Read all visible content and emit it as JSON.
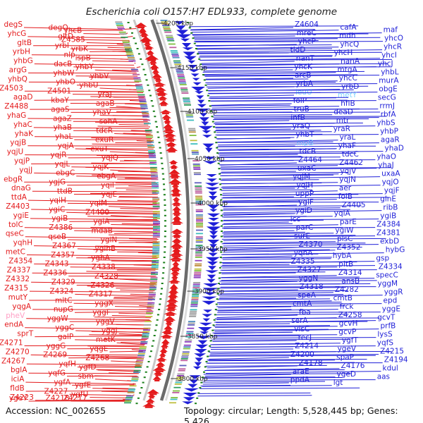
{
  "header": {
    "title": "Escherichia coli O157:H7 EDL933, complete genome"
  },
  "footer": {
    "accession": "Accession: NC_002655",
    "summary": "Topology: circular; Length: 5,528,445 bp; Genes: 5,426"
  },
  "ruler": {
    "ticks": [
      "4200 kbp",
      "4150 kbp",
      "4100 kbp",
      "4050 kbp",
      "4000 kbp",
      "3950 kbp",
      "3900 kbp",
      "3850 kbp",
      "3800 kbp"
    ]
  },
  "colors": {
    "left_strand": "#e41a1c",
    "right_strand": "#1f1fd8",
    "pseudo": "#ff9ec4",
    "rna": "#7fd4ff",
    "tick": "#1a7f1a"
  },
  "left_labels": [
    "degS",
    "degQ",
    "yhcB",
    "yhcG",
    "gltD",
    "Z4585",
    "gltB",
    "yrbI",
    "yrbK",
    "yrbH",
    "nlp",
    "ispB",
    "yhbG",
    "dacB",
    "yhbY",
    "argG",
    "yhbW",
    "yhbV",
    "yhbQ",
    "yhbO",
    "yhbU",
    "Z4503",
    "Z4501",
    "yraJ",
    "agaD",
    "kbaY",
    "agaB",
    "Z4488",
    "agaS",
    "yhaV",
    "yhaG",
    "agaZ",
    "sohA",
    "yhaC",
    "yhaB",
    "tdcR",
    "yhaK",
    "yhaL",
    "exuR",
    "yqjB",
    "yqjA",
    "exuT",
    "yqjU",
    "yqjR",
    "yqjQ",
    "yqjP",
    "yqjL",
    "yqjK",
    "yqjJ",
    "ebgC",
    "ebgA",
    "ebgR",
    "ygjG",
    "yqiI",
    "dnaG",
    "ttdB",
    "yqjE",
    "ttdA",
    "yqiH",
    "yqiM",
    "Z4403",
    "ygiC",
    "Z4400",
    "ygiE",
    "ygiB",
    "ygiA",
    "tolC",
    "Z4386",
    "mdaB",
    "qseC",
    "qseB",
    "ygiN",
    "yqhH",
    "Z4367",
    "ygihB",
    "metC",
    "Z4357",
    "yghA",
    "Z4354",
    "Z4343",
    "Z4338",
    "Z4337",
    "Z4336",
    "Z4328",
    "Z4332",
    "Z4329",
    "Z4326",
    "Z4315",
    "Z4324",
    "Z4317",
    "mutY",
    "mltC",
    "yggX",
    "yqgA",
    "nupG",
    "yggF",
    "pheV",
    "yggW",
    "yggV",
    "endA",
    "yggC",
    "yggJ",
    "sprT",
    "galP",
    "metK",
    "Z4271",
    "yggG",
    "yqgE",
    "Z4270",
    "Z4269",
    "Z4268",
    "Z4267",
    "yqfH",
    "ygfD",
    "bglA",
    "yqfG",
    "sbm",
    "iciA",
    "ygfA",
    "ygfE",
    "fldB",
    "Z4227",
    "ygfU",
    "Z4223",
    "Z4218",
    "Z4217",
    "ygeY"
  ],
  "right_labels": [
    "Z4604",
    "cafA",
    "maf",
    "mreC",
    "mdh",
    "yhcO",
    "yhcP",
    "yhcQ",
    "yhcR",
    "tldD",
    "yhcH",
    "yhcI",
    "nanT",
    "nanA",
    "yhcJ",
    "yhcK",
    "mtgA",
    "yhbL",
    "arcB",
    "yhcC",
    "murA",
    "yrbA",
    "yrbD",
    "obgE",
    "leuU",
    "metY",
    "secG",
    "folP",
    "hflB",
    "rrmJ",
    "truB",
    "deaD",
    "rbfA",
    "infB",
    "mtr",
    "yhbS",
    "yraQ",
    "yraR",
    "yhbP",
    "yhbT",
    "yraL",
    "agaR",
    "mpB",
    "yhaF",
    "yhaD",
    "tdcB",
    "tdcC",
    "yhaO",
    "Z4464",
    "Z4462",
    "yhaJ",
    "uxaC",
    "yqjV",
    "uxaA",
    "yqjM",
    "yqjN",
    "yqjO",
    "yqjH",
    "aer",
    "yqjF",
    "uppP",
    "folB",
    "glnE",
    "ygiF",
    "Z4405",
    "ribB",
    "ygiD",
    "yqiA",
    "ygiB",
    "icc",
    "parE",
    "Z4384",
    "parC",
    "ygiW",
    "Z4381",
    "surE",
    "plsC",
    "exbD",
    "Z4370",
    "Z4352",
    "hybG",
    "yqhA",
    "hybA",
    "gsp",
    "Z4335",
    "pitB",
    "Z4334",
    "Z4327",
    "Z4314",
    "specC",
    "yggN",
    "ansB",
    "yggM",
    "Z4318",
    "Z4282",
    "yggR",
    "speA",
    "cmtB",
    "epd",
    "cmtA",
    "frck",
    "yggE",
    "fba",
    "Z4258",
    "gcvT",
    "serA",
    "gcvH",
    "prfB",
    "visC",
    "gcvP",
    "lysS",
    "recJ",
    "ygfT",
    "yqfS",
    "Z4214",
    "ygeV",
    "Z4215",
    "Z4200",
    "spaP",
    "Z4194",
    "Z4178",
    "Z4176",
    "kdul",
    "araE",
    "ygeD",
    "aas",
    "ppdA",
    "lgt"
  ]
}
